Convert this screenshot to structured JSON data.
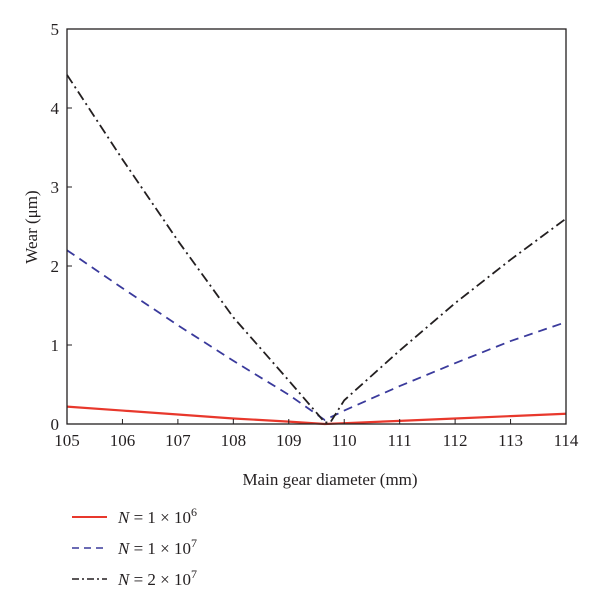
{
  "chart_data": {
    "type": "line",
    "title": "",
    "xlabel": "Main gear diameter (mm)",
    "ylabel": "Wear (μm)",
    "xlim": [
      105,
      114
    ],
    "ylim": [
      0,
      5
    ],
    "x_ticks": [
      105,
      106,
      107,
      108,
      109,
      110,
      111,
      112,
      113,
      114
    ],
    "y_ticks": [
      0,
      1,
      2,
      3,
      4,
      5
    ],
    "grid": false,
    "legend_position": "bottom-left, below plot",
    "series": [
      {
        "name": "N = 1 × 10^6",
        "legend": {
          "var": "N",
          "mid": " = 1 × 10",
          "exp": "6"
        },
        "color": "#e8382c",
        "dash": "solid",
        "x": [
          105,
          106,
          107,
          108,
          109,
          109.65,
          110,
          111,
          112,
          113,
          114
        ],
        "y": [
          0.22,
          0.17,
          0.12,
          0.07,
          0.03,
          0.0,
          0.01,
          0.04,
          0.07,
          0.1,
          0.13
        ]
      },
      {
        "name": "N = 1 × 10^7",
        "legend": {
          "var": "N",
          "mid": " = 1 × 10",
          "exp": "7"
        },
        "color": "#3a3a9c",
        "dash": "dashed",
        "x": [
          105,
          106,
          107,
          108,
          109,
          109.65,
          110,
          111,
          112,
          113,
          114
        ],
        "y": [
          2.2,
          1.72,
          1.25,
          0.8,
          0.37,
          0.05,
          0.17,
          0.48,
          0.77,
          1.05,
          1.29
        ]
      },
      {
        "name": "N = 2 × 10^7",
        "legend": {
          "var": "N",
          "mid": " = 2 × 10",
          "exp": "7"
        },
        "color": "#231f20",
        "dash": "dashdot",
        "x": [
          105,
          106,
          107,
          108,
          109,
          109.65,
          109.75,
          110,
          111,
          112,
          113,
          114
        ],
        "y": [
          4.42,
          3.35,
          2.32,
          1.35,
          0.55,
          0.02,
          0.02,
          0.3,
          0.93,
          1.53,
          2.08,
          2.6
        ]
      }
    ]
  }
}
